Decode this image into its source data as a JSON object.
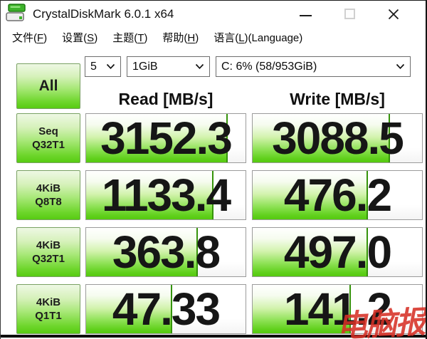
{
  "window": {
    "title": "CrystalDiskMark 6.0.1 x64"
  },
  "menu": {
    "items": [
      {
        "pre": "文件(",
        "key": "F",
        "post": ")"
      },
      {
        "pre": "设置(",
        "key": "S",
        "post": ")"
      },
      {
        "pre": "主题(",
        "key": "T",
        "post": ")"
      },
      {
        "pre": "帮助(",
        "key": "H",
        "post": ")"
      },
      {
        "pre": "语言(",
        "key": "L",
        "post": ")(Language)"
      }
    ]
  },
  "toolbar": {
    "all_label": "All",
    "test_count": "5",
    "test_size": "1GiB",
    "drive": "C: 6% (58/953GiB)"
  },
  "table": {
    "read_header": "Read [MB/s]",
    "write_header": "Write [MB/s]",
    "rows": [
      {
        "label_line1": "Seq",
        "label_line2": "Q32T1",
        "read": "3152.3",
        "write": "3088.5",
        "read_fill": 89,
        "write_fill": 81
      },
      {
        "label_line1": "4KiB",
        "label_line2": "Q8T8",
        "read": "1133.4",
        "write": "476.2",
        "read_fill": 80,
        "write_fill": 68
      },
      {
        "label_line1": "4KiB",
        "label_line2": "Q32T1",
        "read": "363.8",
        "write": "497.0",
        "read_fill": 70,
        "write_fill": 68
      },
      {
        "label_line1": "4KiB",
        "label_line2": "Q1T1",
        "read": "47.33",
        "write": "141.2",
        "read_fill": 54,
        "write_fill": 58
      }
    ]
  },
  "watermark": "电脑报",
  "colors": {
    "green_bright": "#55c90f",
    "green_marker": "#35930a",
    "watermark_red": "#d63026"
  }
}
